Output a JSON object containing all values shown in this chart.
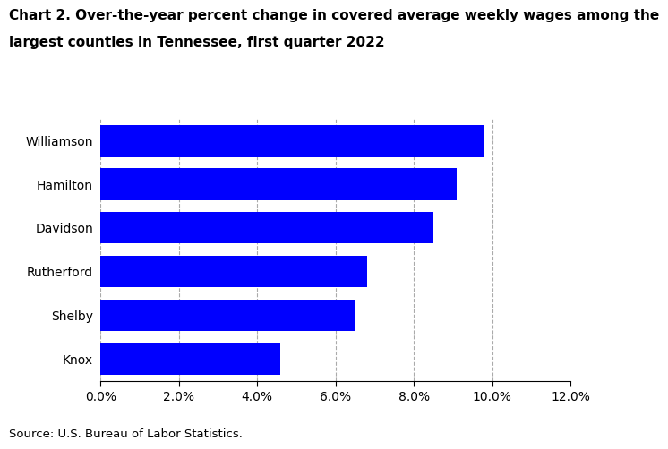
{
  "title_line1": "Chart 2. Over-the-year percent change in covered average weekly wages among the",
  "title_line2": "largest counties in Tennessee, first quarter 2022",
  "categories": [
    "Knox",
    "Shelby",
    "Rutherford",
    "Davidson",
    "Hamilton",
    "Williamson"
  ],
  "values": [
    0.046,
    0.065,
    0.068,
    0.085,
    0.091,
    0.098
  ],
  "bar_color": "#0000FF",
  "xlim": [
    0,
    0.12
  ],
  "xticks": [
    0.0,
    0.02,
    0.04,
    0.06,
    0.08,
    0.1,
    0.12
  ],
  "xtick_labels": [
    "0.0%",
    "2.0%",
    "4.0%",
    "6.0%",
    "8.0%",
    "10.0%",
    "12.0%"
  ],
  "grid_color": "#aaaaaa",
  "source_text": "Source: U.S. Bureau of Labor Statistics.",
  "background_color": "#ffffff",
  "bar_height": 0.72,
  "title_fontsize": 11,
  "tick_fontsize": 10,
  "source_fontsize": 9.5
}
